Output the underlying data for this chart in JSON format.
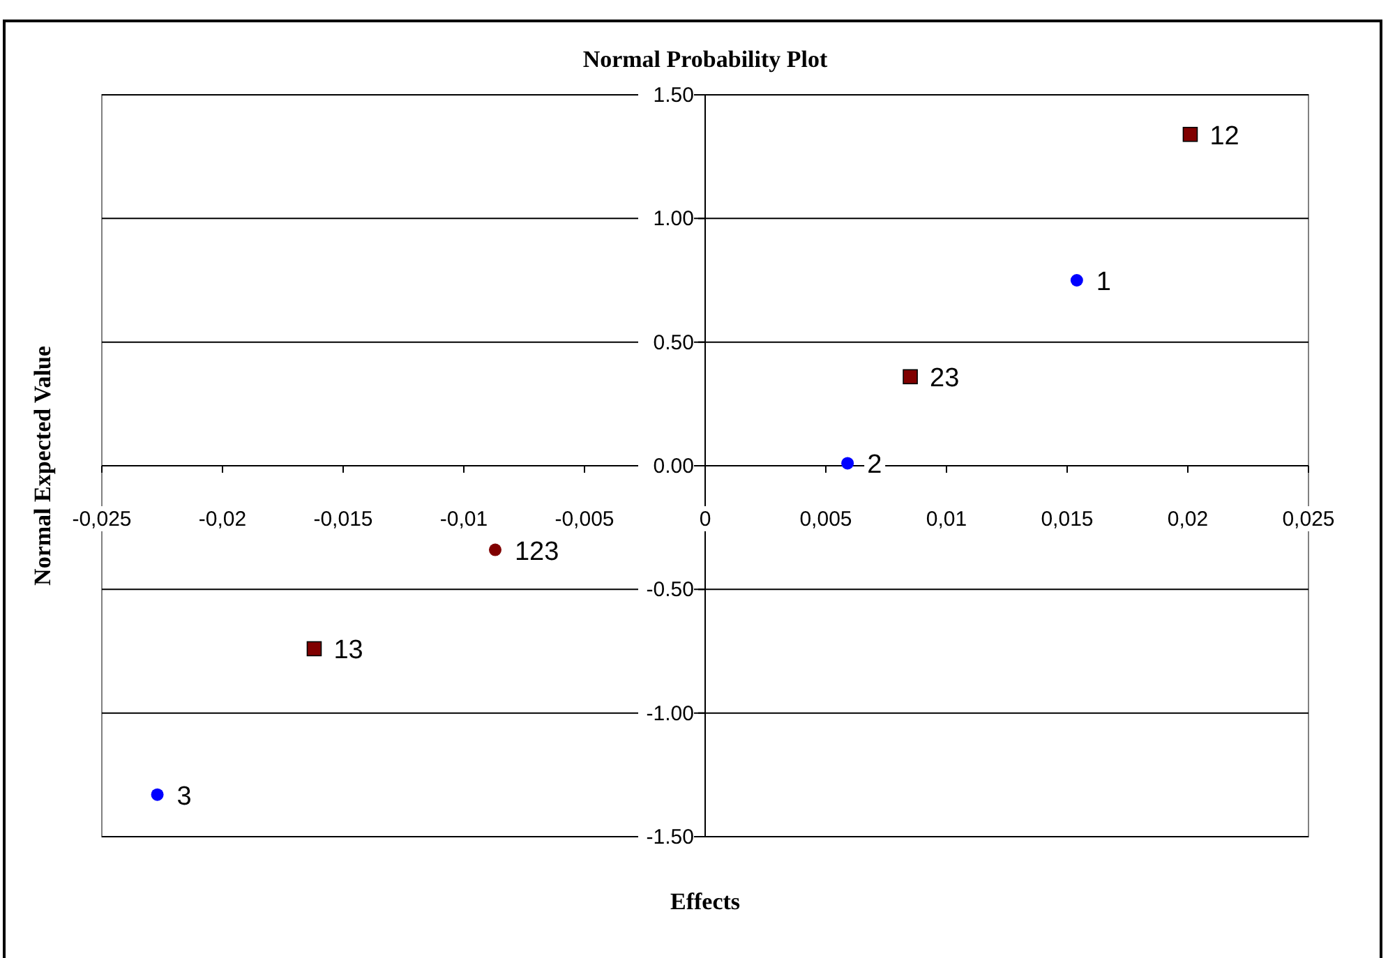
{
  "chart_data": {
    "type": "scatter",
    "title": "Normal Probability Plot",
    "xlabel": "Effects",
    "ylabel": "Normal Expected Value",
    "series": [
      {
        "color": "#0000ff",
        "marker": "circle",
        "x": [
          0.0154,
          0.0059,
          -0.0227
        ],
        "values": [
          0.75,
          0.01,
          -1.33
        ]
      },
      {
        "color": "#800000",
        "marker": "square",
        "x": [
          0.0201,
          0.0085,
          -0.0162
        ],
        "values": [
          1.34,
          0.36,
          -0.74
        ]
      },
      {
        "color": "#800000",
        "marker": "circle",
        "x": [
          -0.0087
        ],
        "values": [
          -0.34
        ]
      }
    ],
    "annotations": [
      {
        "text": "1",
        "x": 0.0154,
        "y": 0.75
      },
      {
        "text": "2",
        "x": 0.0059,
        "y": 0.01
      },
      {
        "text": "3",
        "x": -0.0227,
        "y": -1.33
      },
      {
        "text": "12",
        "x": 0.0201,
        "y": 1.34
      },
      {
        "text": "23",
        "x": 0.0085,
        "y": 0.36
      },
      {
        "text": "13",
        "x": -0.0162,
        "y": -0.74
      },
      {
        "text": "123",
        "x": -0.0087,
        "y": -0.34
      }
    ],
    "xlim": [
      -0.025,
      0.025
    ],
    "xticks": [
      {
        "value": -0.025,
        "label": "-0,025"
      },
      {
        "value": -0.02,
        "label": "-0,02"
      },
      {
        "value": -0.015,
        "label": "-0,015"
      },
      {
        "value": -0.01,
        "label": "-0,01"
      },
      {
        "value": -0.005,
        "label": "-0,005"
      },
      0,
      {
        "value": 0.005,
        "label": "0,005"
      },
      {
        "value": 0.01,
        "label": "0,01"
      },
      {
        "value": 0.015,
        "label": "0,015"
      },
      {
        "value": 0.02,
        "label": "0,02"
      },
      {
        "value": 0.025,
        "label": "0,025"
      }
    ],
    "ylim": [
      -1.5,
      1.5
    ],
    "yticks": [
      {
        "value": -1.5,
        "label": "-1.50"
      },
      {
        "value": -1,
        "label": "-1.00"
      },
      {
        "value": -0.5,
        "label": "-0.50"
      },
      {
        "value": 0,
        "label": "0.00"
      },
      {
        "value": 0.5,
        "label": "0.50"
      },
      {
        "value": 1,
        "label": "1.00"
      },
      {
        "value": 1.5,
        "label": "1.50"
      }
    ],
    "grid": "y"
  }
}
